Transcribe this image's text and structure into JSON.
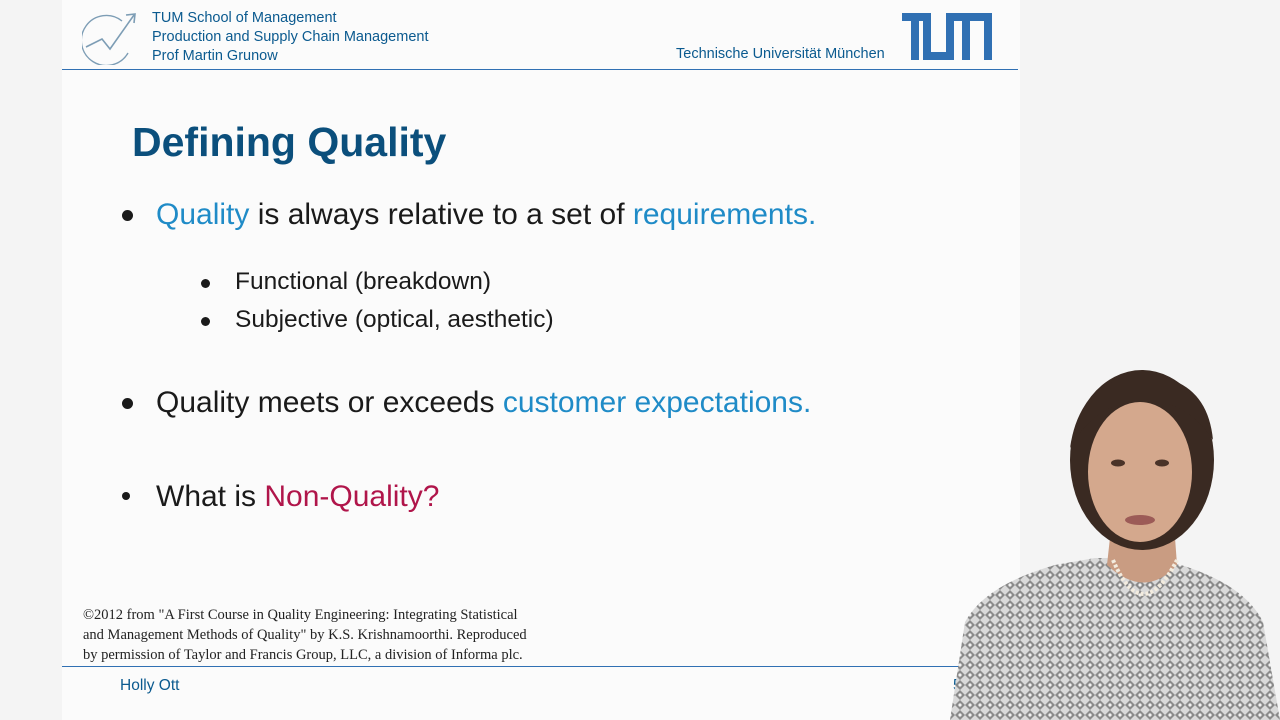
{
  "header": {
    "school_lines": [
      "TUM School of Management",
      "Production and Supply Chain Management",
      "Prof Martin Grunow"
    ],
    "university": "Technische Universität München",
    "logo_text": "TUM"
  },
  "title": "Defining Quality",
  "bullets": [
    {
      "parts": [
        {
          "text": "Quality",
          "style": "blue"
        },
        {
          "text": " is always relative to a set of ",
          "style": "normal"
        },
        {
          "text": "requirements.",
          "style": "blue"
        }
      ],
      "sub": [
        "Functional (breakdown)",
        "Subjective (optical, aesthetic)"
      ]
    },
    {
      "parts": [
        {
          "text": "Quality meets or exceeds ",
          "style": "normal"
        },
        {
          "text": "customer expectations.",
          "style": "blue"
        }
      ]
    },
    {
      "parts": [
        {
          "text": "What is ",
          "style": "normal"
        },
        {
          "text": "Non-Quality?",
          "style": "red"
        }
      ]
    }
  ],
  "citation_lines": [
    "©2012 from \"A First Course in Quality Engineering: Integrating Statistical",
    "and Management Methods of Quality\" by K.S. Krishnamoorthi. Reproduced",
    "by permission of Taylor and Francis Group, LLC, a division of Informa plc."
  ],
  "footer": {
    "presenter": "Holly Ott",
    "page_number": "5"
  },
  "colors": {
    "dark_blue": "#0b4f7c",
    "tum_blue": "#3070b3",
    "accent_blue": "#1f8bc7",
    "accent_red": "#b0154a"
  }
}
